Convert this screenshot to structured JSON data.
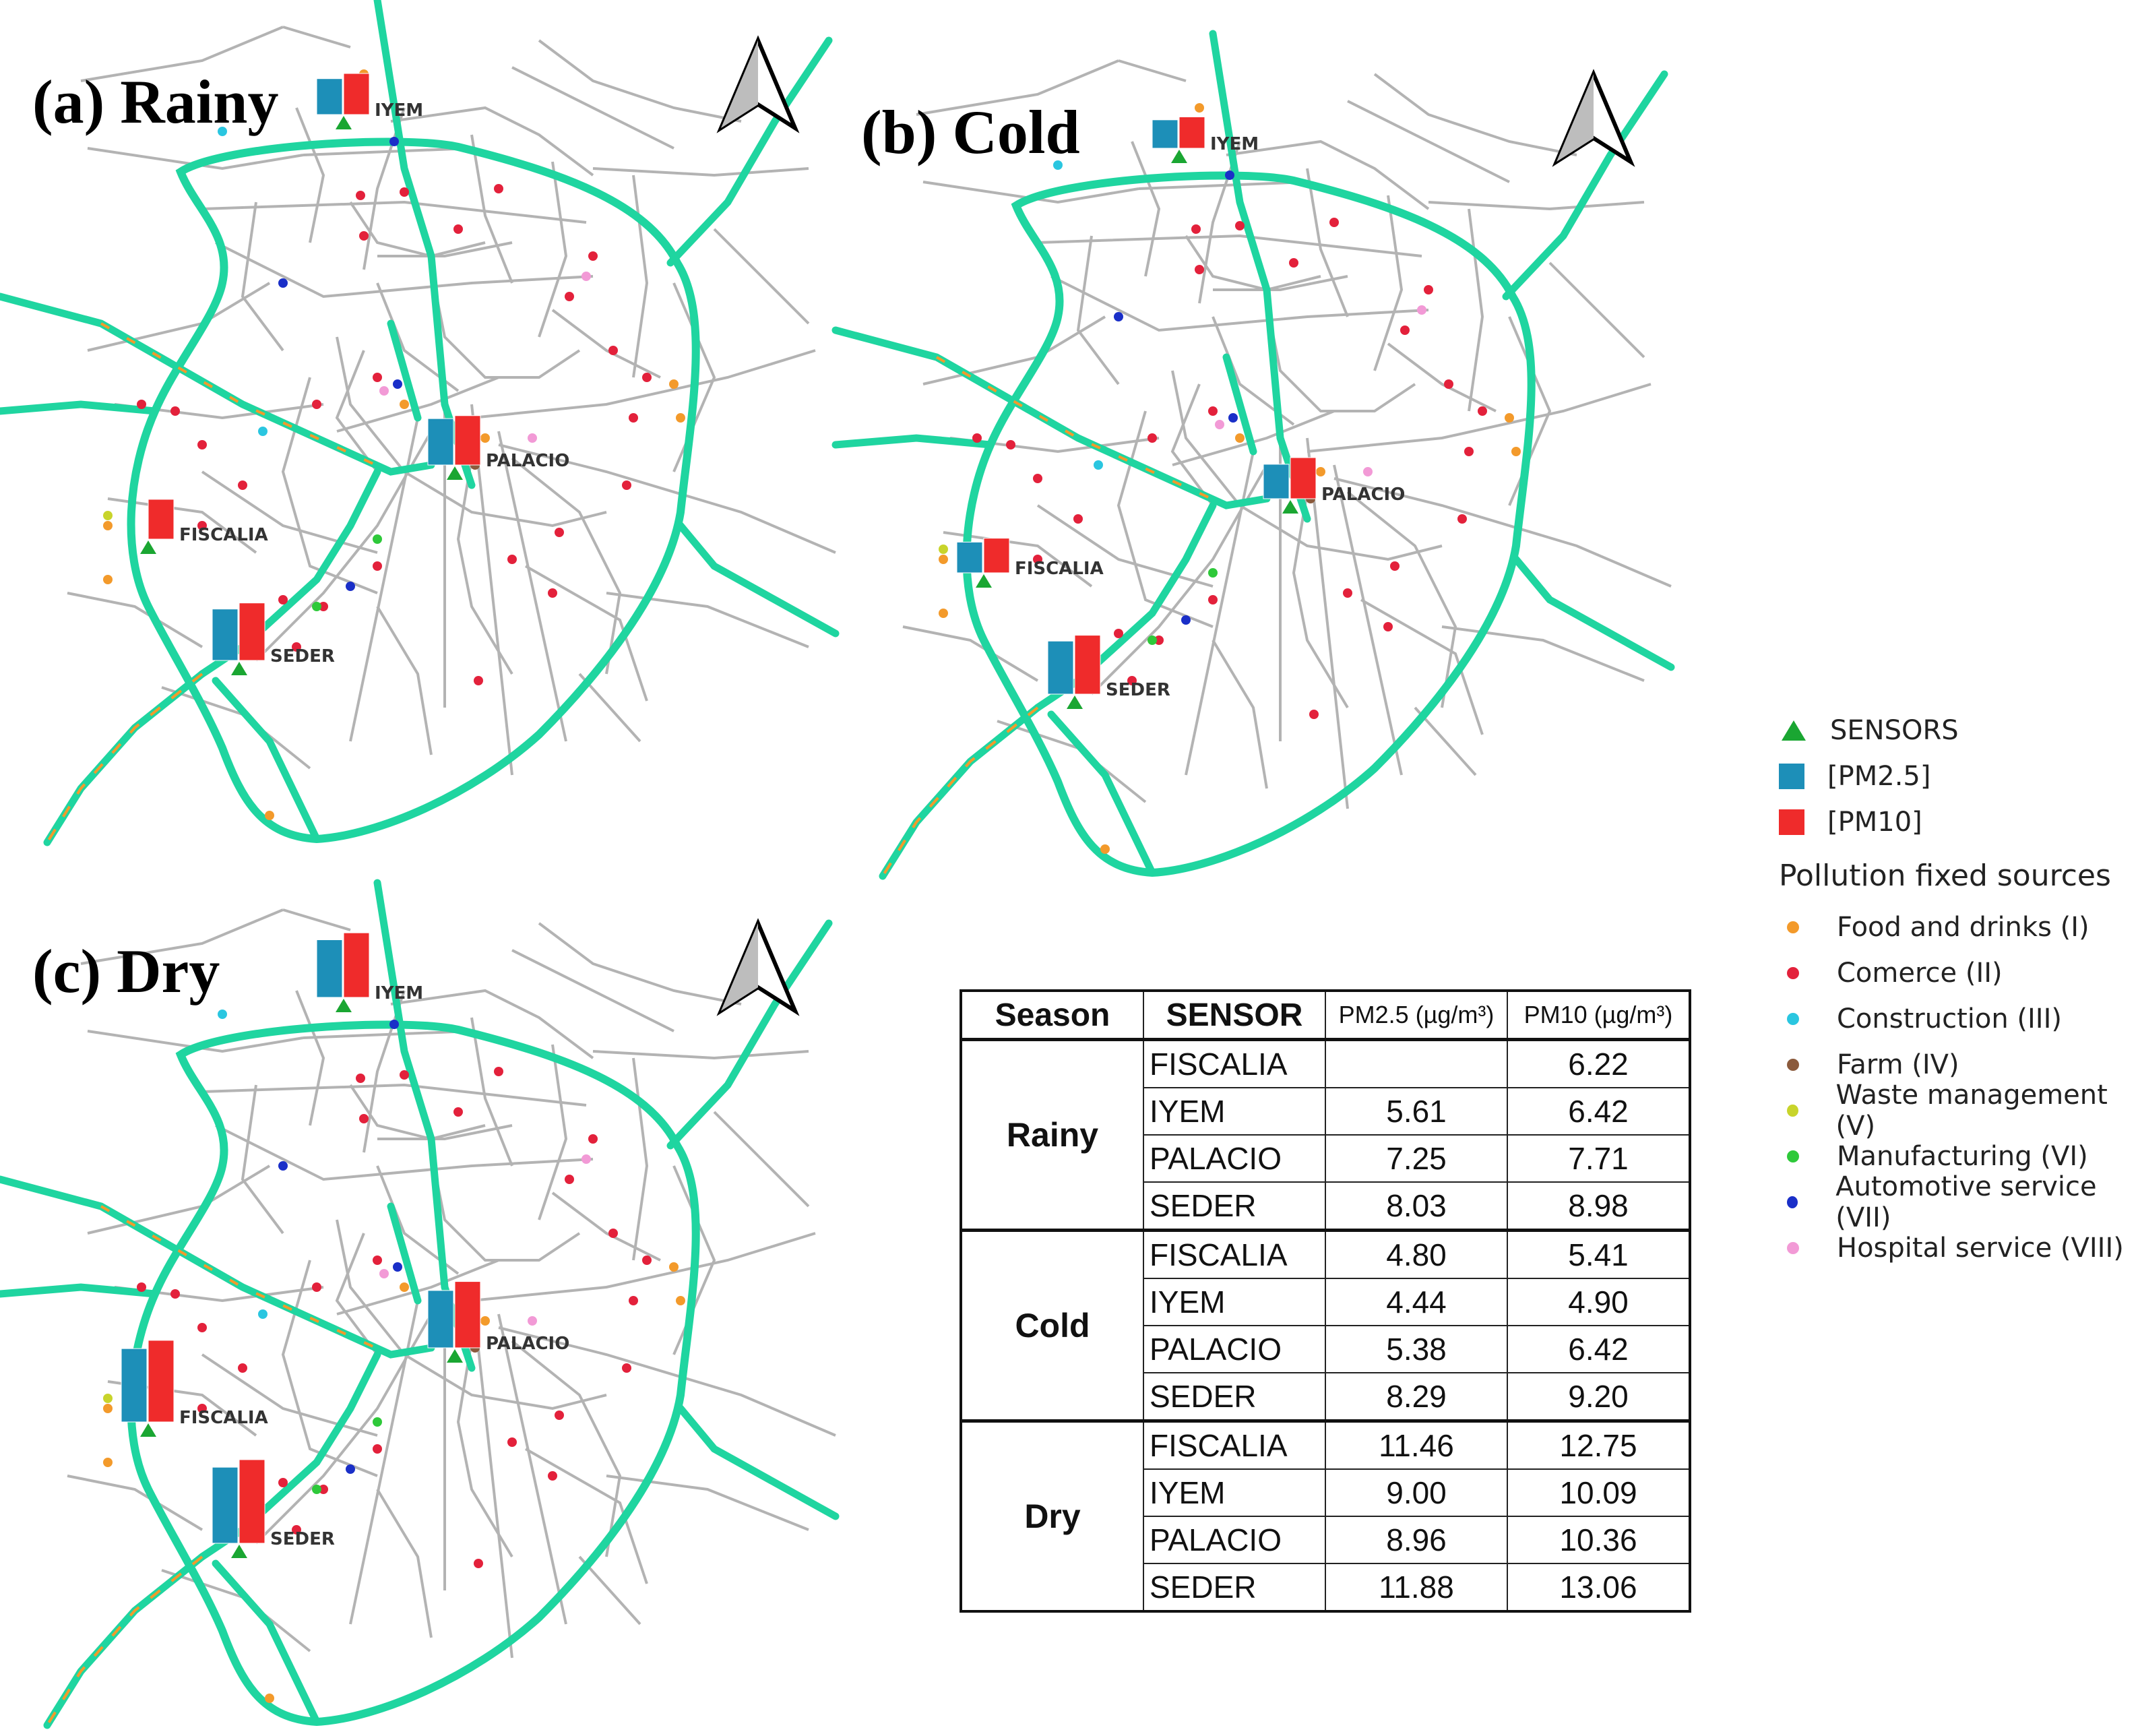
{
  "panels": [
    {
      "id": "a",
      "label": "(a) Rainy",
      "sensors": [
        {
          "name": "IYEM",
          "pm25": 5.61,
          "pm10": 6.42
        },
        {
          "name": "PALACIO",
          "pm25": 7.25,
          "pm10": 7.71
        },
        {
          "name": "FISCALIA",
          "pm25": null,
          "pm10": 6.22
        },
        {
          "name": "SEDER",
          "pm25": 8.03,
          "pm10": 8.98
        }
      ]
    },
    {
      "id": "b",
      "label": "(b) Cold",
      "sensors": [
        {
          "name": "IYEM",
          "pm25": 4.44,
          "pm10": 4.9
        },
        {
          "name": "PALACIO",
          "pm25": 5.38,
          "pm10": 6.42
        },
        {
          "name": "FISCALIA",
          "pm25": 4.8,
          "pm10": 5.41
        },
        {
          "name": "SEDER",
          "pm25": 8.29,
          "pm10": 9.2
        }
      ]
    },
    {
      "id": "c",
      "label": "(c) Dry",
      "sensors": [
        {
          "name": "IYEM",
          "pm25": 9.0,
          "pm10": 10.09
        },
        {
          "name": "PALACIO",
          "pm25": 8.96,
          "pm10": 10.36
        },
        {
          "name": "FISCALIA",
          "pm25": 11.46,
          "pm10": 12.75
        },
        {
          "name": "SEDER",
          "pm25": 11.88,
          "pm10": 13.06
        }
      ]
    }
  ],
  "legend": {
    "sensors": "SENSORS",
    "pm25": "[PM2.5]",
    "pm10": "[PM10]",
    "sources_title": "Pollution fixed sources",
    "sources": [
      {
        "label": "Food and drinks (I)",
        "color": "#f39a2b"
      },
      {
        "label": "Comerce (II)",
        "color": "#e3213b"
      },
      {
        "label": "Construction (III)",
        "color": "#2ac6e0"
      },
      {
        "label": "Farm (IV)",
        "color": "#8b5a3c"
      },
      {
        "label": "Waste management (V)",
        "color": "#c8d42b"
      },
      {
        "label": "Manufacturing (VI)",
        "color": "#2ec93a"
      },
      {
        "label": "Automotive service (VII)",
        "color": "#1a2fc8"
      },
      {
        "label": "Hospital service (VIII)",
        "color": "#f29ad6"
      }
    ]
  },
  "colors": {
    "road": "#1fd5a0",
    "street": "#b3b3b3",
    "pm25": "#1d8fb8",
    "pm10": "#ef2b2b",
    "sensor": "#1aa632"
  },
  "table": {
    "headers": {
      "season": "Season",
      "sensor": "SENSOR",
      "pm25": "PM2.5 (µg/m³)",
      "pm10": "PM10 (µg/m³)"
    },
    "groups": [
      {
        "season": "Rainy",
        "rows": [
          {
            "sensor": "FISCALIA",
            "pm25": "",
            "pm10": "6.22"
          },
          {
            "sensor": "IYEM",
            "pm25": "5.61",
            "pm10": "6.42"
          },
          {
            "sensor": "PALACIO",
            "pm25": "7.25",
            "pm10": "7.71"
          },
          {
            "sensor": "SEDER",
            "pm25": "8.03",
            "pm10": "8.98"
          }
        ]
      },
      {
        "season": "Cold",
        "rows": [
          {
            "sensor": "FISCALIA",
            "pm25": "4.80",
            "pm10": "5.41"
          },
          {
            "sensor": "IYEM",
            "pm25": "4.44",
            "pm10": "4.90"
          },
          {
            "sensor": "PALACIO",
            "pm25": "5.38",
            "pm10": "6.42"
          },
          {
            "sensor": "SEDER",
            "pm25": "8.29",
            "pm10": "9.20"
          }
        ]
      },
      {
        "season": "Dry",
        "rows": [
          {
            "sensor": "FISCALIA",
            "pm25": "11.46",
            "pm10": "12.75"
          },
          {
            "sensor": "IYEM",
            "pm25": "9.00",
            "pm10": "10.09"
          },
          {
            "sensor": "PALACIO",
            "pm25": "8.96",
            "pm10": "10.36"
          },
          {
            "sensor": "SEDER",
            "pm25": "11.88",
            "pm10": "13.06"
          }
        ]
      }
    ]
  }
}
